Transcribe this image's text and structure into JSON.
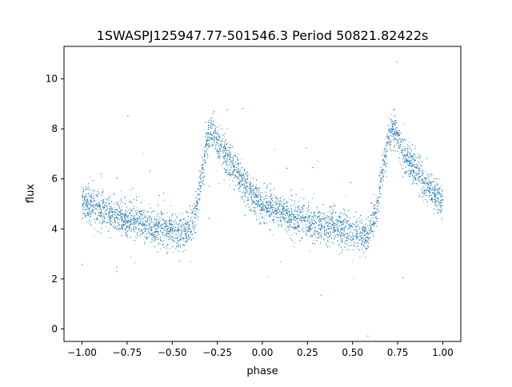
{
  "chart_data": {
    "type": "scatter",
    "title": "1SWASPJ125947.77-501546.3 Period 50821.82422s",
    "xlabel": "phase",
    "ylabel": "flux",
    "xlim": [
      -1.1,
      1.1
    ],
    "ylim": [
      -0.5,
      11.3
    ],
    "x_ticks": [
      -1.0,
      -0.75,
      -0.5,
      -0.25,
      0.0,
      0.25,
      0.5,
      0.75,
      1.0
    ],
    "x_tick_labels": [
      "−1.00",
      "−0.75",
      "−0.50",
      "−0.25",
      "0.00",
      "0.25",
      "0.50",
      "0.75",
      "1.00"
    ],
    "y_ticks": [
      0,
      2,
      4,
      6,
      8,
      10
    ],
    "y_tick_labels": [
      "0",
      "2",
      "4",
      "6",
      "8",
      "10"
    ],
    "grid": false,
    "legend": "none",
    "color": "#1f77b4",
    "series": [
      {
        "x": [
          -1.0,
          -0.9,
          -0.8,
          -0.7,
          -0.6,
          -0.5,
          -0.42,
          -0.37,
          -0.33,
          -0.3,
          -0.28,
          -0.25,
          -0.2,
          -0.15,
          -0.1,
          -0.05,
          0.0,
          0.1,
          0.2,
          0.3,
          0.4,
          0.5,
          0.58,
          0.63,
          0.67,
          0.7,
          0.72,
          0.75,
          0.8,
          0.85,
          0.9,
          0.95,
          1.0
        ],
        "y": [
          5.1,
          4.75,
          4.5,
          4.3,
          4.1,
          3.95,
          3.75,
          4.6,
          6.5,
          7.7,
          8.0,
          7.55,
          6.9,
          6.3,
          5.75,
          5.3,
          5.0,
          4.65,
          4.4,
          4.2,
          4.05,
          3.9,
          3.7,
          4.6,
          6.5,
          7.7,
          8.0,
          7.55,
          6.9,
          6.3,
          5.75,
          5.4,
          5.1
        ],
        "scatter_sd": 0.35
      }
    ]
  }
}
